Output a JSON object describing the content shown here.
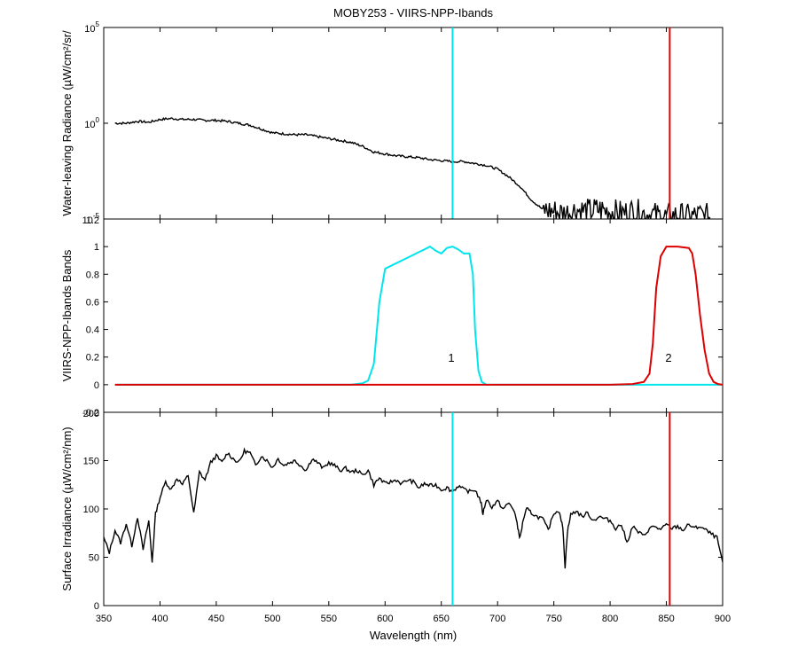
{
  "title": "MOBY253 - VIIRS-NPP-Ibands",
  "xlabel": "Wavelength (nm)",
  "x_ticks": [
    "350",
    "400",
    "450",
    "500",
    "550",
    "600",
    "650",
    "700",
    "750",
    "800",
    "850",
    "900"
  ],
  "colors": {
    "band1": "#00e5ee",
    "band2": "#dd0000",
    "trace": "#000000"
  },
  "chart_data": [
    {
      "type": "line",
      "ylabel": "Water-leaving Radiance (µW/cm²/sr/",
      "yscale": "log",
      "xlim": [
        350,
        900
      ],
      "ylim_exponent": [
        -5,
        5
      ],
      "y_ticks": [
        {
          "base": "10",
          "exp": "5"
        },
        {
          "base": "10",
          "exp": "0"
        },
        {
          "base": "10",
          "exp": "-5"
        }
      ],
      "band_lines_x": [
        660,
        853
      ],
      "series": [
        {
          "x": [
            360,
            370,
            380,
            390,
            400,
            410,
            420,
            430,
            440,
            450,
            460,
            470,
            480,
            490,
            500,
            510,
            520,
            530,
            540,
            550,
            560,
            570,
            580,
            590,
            600,
            610,
            620,
            630,
            640,
            650,
            660,
            670,
            680,
            690,
            700,
            710,
            720,
            730,
            740,
            750,
            760,
            770,
            780,
            790,
            800,
            810,
            820,
            830,
            840,
            850,
            860,
            870,
            880,
            890
          ],
          "y_exp": [
            0,
            0,
            0.1,
            0.05,
            0.2,
            0.25,
            0.2,
            0.2,
            0.15,
            0.15,
            0.1,
            0,
            -0.1,
            -0.3,
            -0.5,
            -0.55,
            -0.6,
            -0.6,
            -0.7,
            -0.8,
            -0.9,
            -1.0,
            -1.2,
            -1.5,
            -1.6,
            -1.7,
            -1.75,
            -1.8,
            -1.9,
            -1.95,
            -2.0,
            -2.0,
            -2.1,
            -2.2,
            -2.4,
            -2.8,
            -3.3,
            -4.0,
            -4.5,
            -4.6,
            -4.7,
            -4.5,
            -4.6,
            -4.5,
            -4.6,
            -4.7,
            -4.6,
            -4.7,
            -4.8,
            -4.9,
            -4.8,
            -4.9,
            -4.8,
            -4.9
          ]
        }
      ]
    },
    {
      "type": "line",
      "ylabel": "VIIRS-NPP-Ibands Bands",
      "xlim": [
        350,
        900
      ],
      "ylim": [
        -0.2,
        1.2
      ],
      "y_ticks": [
        "0",
        "0.2",
        "0.4",
        "0.6",
        "0.8",
        "1"
      ],
      "top_tick_label": "1.2",
      "bottom_tick_label": "-0.2",
      "annotations": [
        {
          "text": "1",
          "x": 660,
          "y": 0.18
        },
        {
          "text": "2",
          "x": 851,
          "y": 0.18
        }
      ],
      "series": [
        {
          "name": "1",
          "x": [
            360,
            570,
            580,
            585,
            590,
            595,
            600,
            610,
            620,
            630,
            635,
            640,
            645,
            650,
            655,
            660,
            665,
            670,
            675,
            678,
            680,
            683,
            686,
            690,
            700,
            900
          ],
          "y": [
            0,
            0,
            0.01,
            0.03,
            0.15,
            0.6,
            0.84,
            0.88,
            0.92,
            0.96,
            0.98,
            1.0,
            0.97,
            0.95,
            0.99,
            1.0,
            0.98,
            0.95,
            0.95,
            0.8,
            0.4,
            0.1,
            0.02,
            0,
            0,
            0
          ]
        },
        {
          "name": "2",
          "x": [
            360,
            800,
            820,
            830,
            835,
            838,
            841,
            845,
            850,
            860,
            870,
            873,
            876,
            880,
            884,
            888,
            892,
            896,
            900
          ],
          "y": [
            0,
            0,
            0.005,
            0.02,
            0.08,
            0.3,
            0.7,
            0.93,
            1.0,
            1.0,
            0.99,
            0.95,
            0.8,
            0.5,
            0.25,
            0.08,
            0.02,
            0.005,
            0
          ]
        }
      ]
    },
    {
      "type": "line",
      "ylabel": "Surface Irradiance (µW/cm²/nm)",
      "xlim": [
        350,
        900
      ],
      "ylim": [
        0,
        200
      ],
      "y_ticks": [
        "0",
        "50",
        "100",
        "150"
      ],
      "top_tick_label": "200",
      "band_lines_x": [
        660,
        853
      ],
      "series": [
        {
          "x": [
            350,
            355,
            360,
            365,
            370,
            375,
            380,
            385,
            390,
            393,
            396,
            400,
            405,
            410,
            415,
            420,
            425,
            430,
            435,
            440,
            445,
            450,
            455,
            460,
            465,
            470,
            475,
            480,
            485,
            490,
            495,
            500,
            505,
            510,
            515,
            520,
            525,
            530,
            535,
            540,
            545,
            550,
            555,
            560,
            565,
            570,
            575,
            580,
            585,
            590,
            595,
            600,
            605,
            610,
            615,
            620,
            625,
            630,
            635,
            640,
            645,
            650,
            655,
            660,
            665,
            670,
            675,
            680,
            685,
            687,
            690,
            695,
            700,
            705,
            710,
            715,
            718,
            720,
            723,
            726,
            730,
            735,
            740,
            745,
            750,
            755,
            758,
            760,
            762,
            765,
            770,
            775,
            780,
            785,
            790,
            795,
            800,
            805,
            810,
            815,
            820,
            825,
            830,
            835,
            840,
            845,
            850,
            855,
            860,
            865,
            870,
            875,
            880,
            885,
            890,
            895,
            900
          ],
          "y": [
            70,
            55,
            78,
            65,
            85,
            62,
            92,
            58,
            88,
            45,
            95,
            112,
            128,
            120,
            132,
            125,
            135,
            95,
            138,
            130,
            148,
            155,
            148,
            158,
            152,
            148,
            160,
            158,
            145,
            155,
            150,
            143,
            152,
            145,
            148,
            150,
            145,
            140,
            152,
            148,
            142,
            148,
            145,
            140,
            142,
            138,
            140,
            135,
            140,
            125,
            132,
            126,
            128,
            130,
            126,
            130,
            128,
            122,
            126,
            124,
            125,
            120,
            122,
            118,
            124,
            120,
            118,
            120,
            108,
            95,
            110,
            102,
            108,
            100,
            106,
            98,
            80,
            70,
            90,
            100,
            96,
            92,
            90,
            78,
            96,
            98,
            80,
            40,
            76,
            94,
            98,
            92,
            96,
            88,
            92,
            90,
            88,
            80,
            84,
            65,
            82,
            76,
            72,
            80,
            82,
            78,
            84,
            80,
            82,
            78,
            84,
            80,
            82,
            78,
            74,
            70,
            45
          ]
        }
      ]
    }
  ]
}
